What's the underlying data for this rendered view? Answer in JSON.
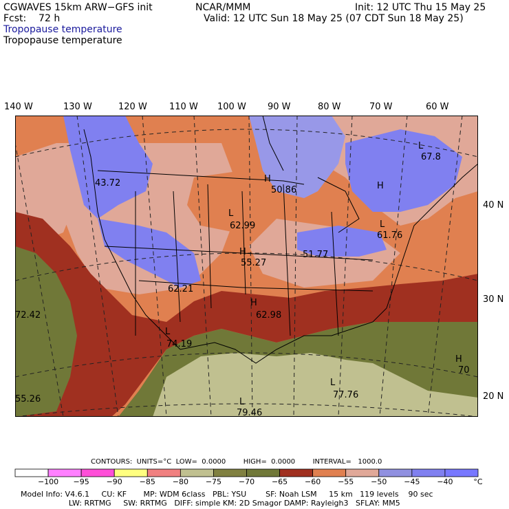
{
  "header": {
    "left_line1": "CGWAVES 15km ARW−GFS init",
    "left_line2": "Fcst:    72 h",
    "center_line1": "NCAR/MMM",
    "init": "Init: 12 UTC Thu 15 May 25",
    "valid": "Valid: 12 UTC Sun 18 May 25 (07 CDT Sun 18 May 25)",
    "field_title_1": "Tropopause temperature",
    "field_title_2": "Tropopause temperature"
  },
  "longitude_labels": [
    "140 W",
    "130 W",
    "120 W",
    "110 W",
    "100 W",
    "90 W",
    "80 W",
    "70 W",
    "60 W"
  ],
  "latitude_labels": [
    "40 N",
    "30 N",
    "20 N"
  ],
  "map": {
    "annotations": [
      {
        "text": "43.72"
      },
      {
        "text": "H"
      },
      {
        "text": "50.86"
      },
      {
        "text": "L"
      },
      {
        "text": "62.99"
      },
      {
        "text": "H"
      },
      {
        "text": "55.27"
      },
      {
        "text": "51.77"
      },
      {
        "text": "H"
      },
      {
        "text": "L"
      },
      {
        "text": "61.76"
      },
      {
        "text": "L"
      },
      {
        "text": "67.8"
      },
      {
        "text": "62.21"
      },
      {
        "text": "H"
      },
      {
        "text": "62.98"
      },
      {
        "text": "L"
      },
      {
        "text": "74.19"
      },
      {
        "text": "72.42"
      },
      {
        "text": "L"
      },
      {
        "text": "77.76"
      },
      {
        "text": "H"
      },
      {
        "text": "70"
      },
      {
        "text": "L"
      },
      {
        "text": "79.46"
      },
      {
        "text": "55.26"
      }
    ]
  },
  "contours_line": "CONTOURS:  UNITS=°C  LOW=  0.0000        HIGH=  0.0000        INTERVAL=   1000.0",
  "colorbar": {
    "colors": [
      "#ffffff",
      "#ff80ff",
      "#ff4fd8",
      "#ffff80",
      "#f08080",
      "#c0c090",
      "#808040",
      "#707838",
      "#a03020",
      "#e08050",
      "#e0a898",
      "#9090e0",
      "#8080f0",
      "#7878ff"
    ],
    "labels": [
      "−100",
      "−95",
      "−90",
      "−85",
      "−80",
      "−75",
      "−70",
      "−65",
      "−60",
      "−55",
      "−50",
      "−45",
      "−40",
      "°C"
    ]
  },
  "footer": {
    "line1": "Model Info: V4.6.1     CU: KF       MP: WDM 6class   PBL: YSU        SF: Noah LSM     15 km   119 levels    90 sec",
    "line2": "                    LW: RRTMG     SW: RRTMG   DIFF: simple KM: 2D Smagor DAMP: Rayleigh3   SFLAY: MM5"
  },
  "colors": {
    "blue_band": "#8080f0",
    "light_blue": "#9898e8",
    "salmon_light": "#e0a898",
    "salmon": "#e08050",
    "dark_red": "#a03020",
    "olive": "#707838",
    "khaki": "#c0c090"
  }
}
